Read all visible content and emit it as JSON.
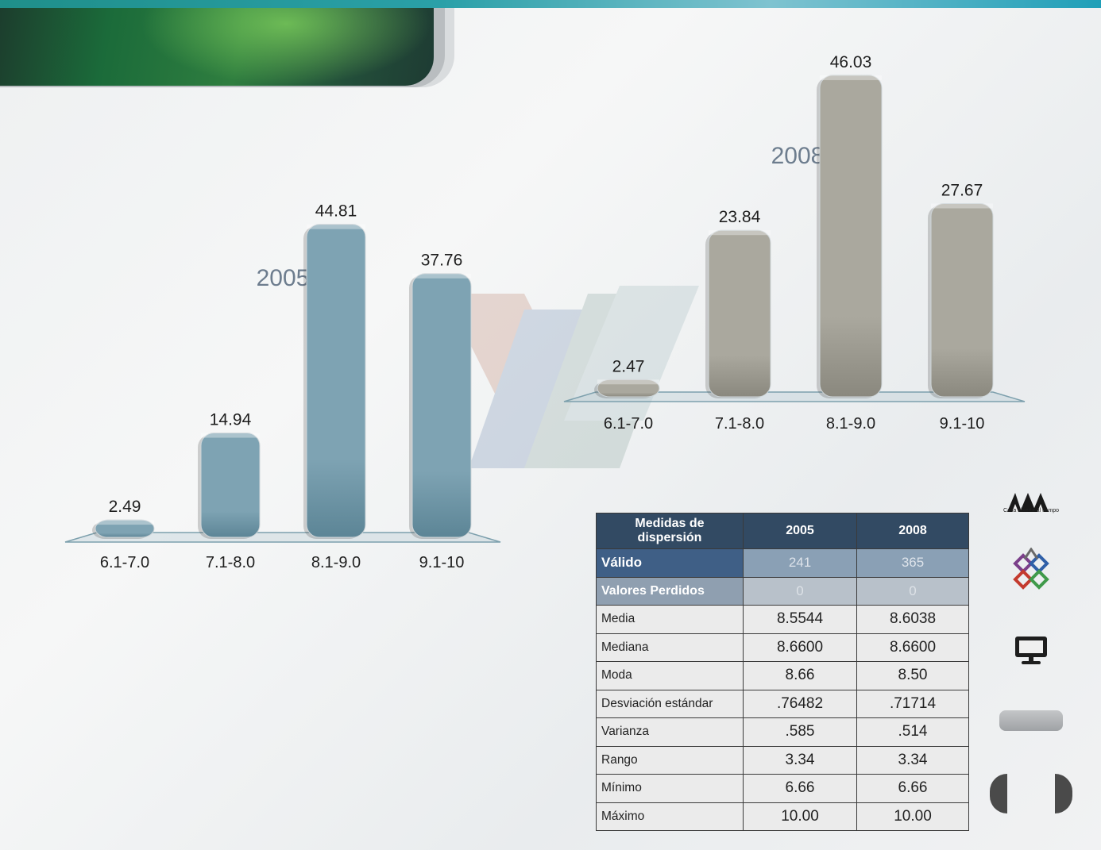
{
  "theme": {
    "bar_2005": "#7ea3b3",
    "bar_2005_dark": "#5c8596",
    "bar_2008": "#aaa89e",
    "bar_2008_dark": "#8a887e",
    "table_header": "#324a63"
  },
  "chart_data": [
    {
      "type": "bar",
      "title": "2005",
      "categories": [
        "6.1-7.0",
        "7.1-8.0",
        "8.1-9.0",
        "9.1-10"
      ],
      "values": [
        2.49,
        14.94,
        44.81,
        37.76
      ],
      "ylim": [
        0,
        50
      ],
      "grid": false
    },
    {
      "type": "bar",
      "title": "2008",
      "categories": [
        "6.1-7.0",
        "7.1-8.0",
        "8.1-9.0",
        "9.1-10"
      ],
      "values": [
        2.47,
        23.84,
        46.03,
        27.67
      ],
      "ylim": [
        0,
        50
      ],
      "grid": false
    }
  ],
  "table": {
    "header": [
      "Medidas de dispersión",
      "2005",
      "2008"
    ],
    "rows": [
      {
        "label": "Válido",
        "v2005": "241",
        "v2008": "365",
        "style": "valid"
      },
      {
        "label": "Valores Perdidos",
        "v2005": "0",
        "v2008": "0",
        "style": "lost"
      },
      {
        "label": "Media",
        "v2005": "8.5544",
        "v2008": "8.6038",
        "style": "plain"
      },
      {
        "label": "Mediana",
        "v2005": "8.6600",
        "v2008": "8.6600",
        "style": "plain"
      },
      {
        "label": "Moda",
        "v2005": "8.66",
        "v2008": "8.50",
        "style": "plain"
      },
      {
        "label": "Desviación estándar",
        "v2005": ".76482",
        "v2008": ".71714",
        "style": "plain"
      },
      {
        "label": "Varianza",
        "v2005": ".585",
        "v2008": ".514",
        "style": "plain"
      },
      {
        "label": "Rango",
        "v2005": "3.34",
        "v2008": "3.34",
        "style": "plain"
      },
      {
        "label": "Mínimo",
        "v2005": "6.66",
        "v2008": "6.66",
        "style": "plain"
      },
      {
        "label": "Máximo",
        "v2005": "10.00",
        "v2008": "10.00",
        "style": "plain"
      }
    ]
  },
  "sidebar": {
    "logo_tagline": "Casa abierta al tiempo",
    "icons": [
      "uam-logo",
      "cubes-icon",
      "monitor-icon"
    ]
  }
}
